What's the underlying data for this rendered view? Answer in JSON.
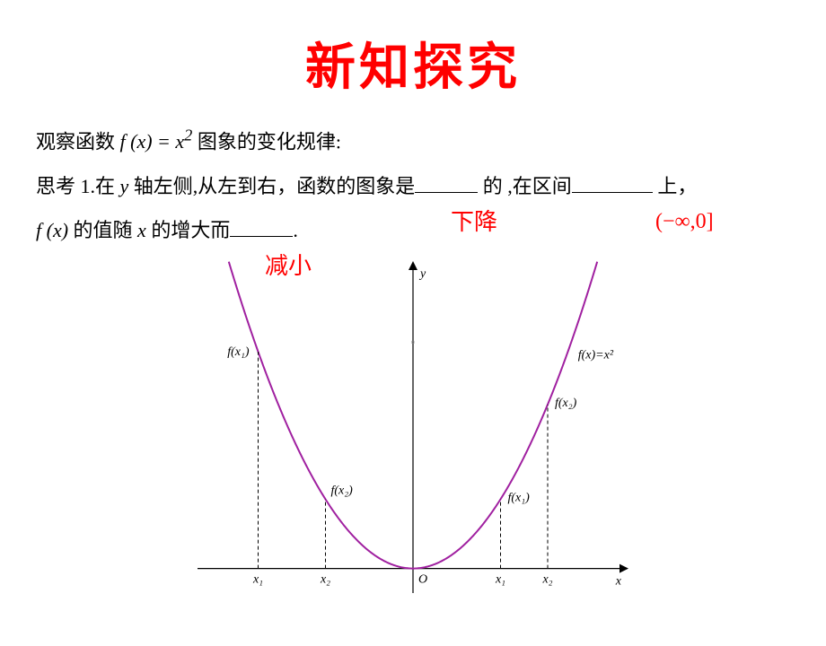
{
  "title": "新知探究",
  "text": {
    "intro_pre": "观察函数 ",
    "intro_func_lhs": "f (x) = x",
    "intro_func_exp": "2",
    "intro_post": " 图象的变化规律:",
    "q1_pre": "思考 1.在 ",
    "q1_yaxis": "y",
    "q1_mid1": " 轴左侧,从左到右，函数的图象是",
    "q1_mid2": " 的  ,在区间",
    "q1_mid3": "  上，",
    "q1_line2_pre": "f (x)",
    "q1_line2_mid1": " 的值随 ",
    "q1_line2_x": "x",
    "q1_line2_mid2": " 的增大而",
    "q1_line2_end": "."
  },
  "answers": {
    "a1": "下降",
    "a2": "(−∞,0]",
    "a3": "减小"
  },
  "graph": {
    "type": "function-plot",
    "function_label": "f(x)=x²",
    "curve_color": "#a020a0",
    "axis_color": "#000000",
    "dash_color": "#000000",
    "background_color": "#ffffff",
    "axis_labels": {
      "x": "x",
      "y": "y",
      "origin": "O"
    },
    "point_labels_left": [
      "f(x₁)",
      "f(x₂)",
      "x₁",
      "x₂"
    ],
    "point_labels_right": [
      "f(x₁)",
      "f(x₂)",
      "x₁",
      "x₂"
    ],
    "x_range": [
      -3.2,
      3.2
    ],
    "y_range": [
      -0.6,
      7.5
    ],
    "left_points": {
      "x1": -2.3,
      "x2": -1.3
    },
    "right_points": {
      "x1": 1.3,
      "x2": 2.0
    },
    "line_width_curve": 2,
    "line_width_axis": 1.2,
    "font_size_labels": 14,
    "font_family_labels": "Times New Roman"
  }
}
